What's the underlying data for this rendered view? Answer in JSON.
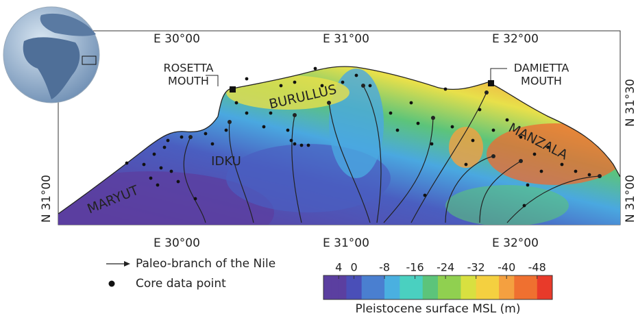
{
  "map": {
    "top_ticks": [
      "E 30°00",
      "E 31°00",
      "E 32°00"
    ],
    "bottom_ticks": [
      "E 30°00",
      "E 31°00",
      "E 32°00"
    ],
    "left_ticks": [
      "N 31°00"
    ],
    "right_ticks": [
      "N 31°30",
      "N 31°00"
    ],
    "places": [
      {
        "lines": [
          "ROSETTA",
          "MOUTH"
        ]
      },
      {
        "lines": [
          "DAMIETTA",
          "MOUTH"
        ]
      },
      {
        "lines": [
          "BURULLUS"
        ]
      },
      {
        "lines": [
          "IDKU"
        ]
      },
      {
        "lines": [
          "MARYUT"
        ]
      },
      {
        "lines": [
          "MANZALA"
        ]
      }
    ],
    "legend": [
      "Paleo-branch of the Nile",
      "Core data point"
    ],
    "colorbar": {
      "title": "Pleistocene surface MSL (m)",
      "lim": [
        8,
        -52
      ],
      "ticks": [
        4,
        0,
        -8,
        -16,
        -24,
        -32,
        -40,
        -48
      ]
    }
  }
}
